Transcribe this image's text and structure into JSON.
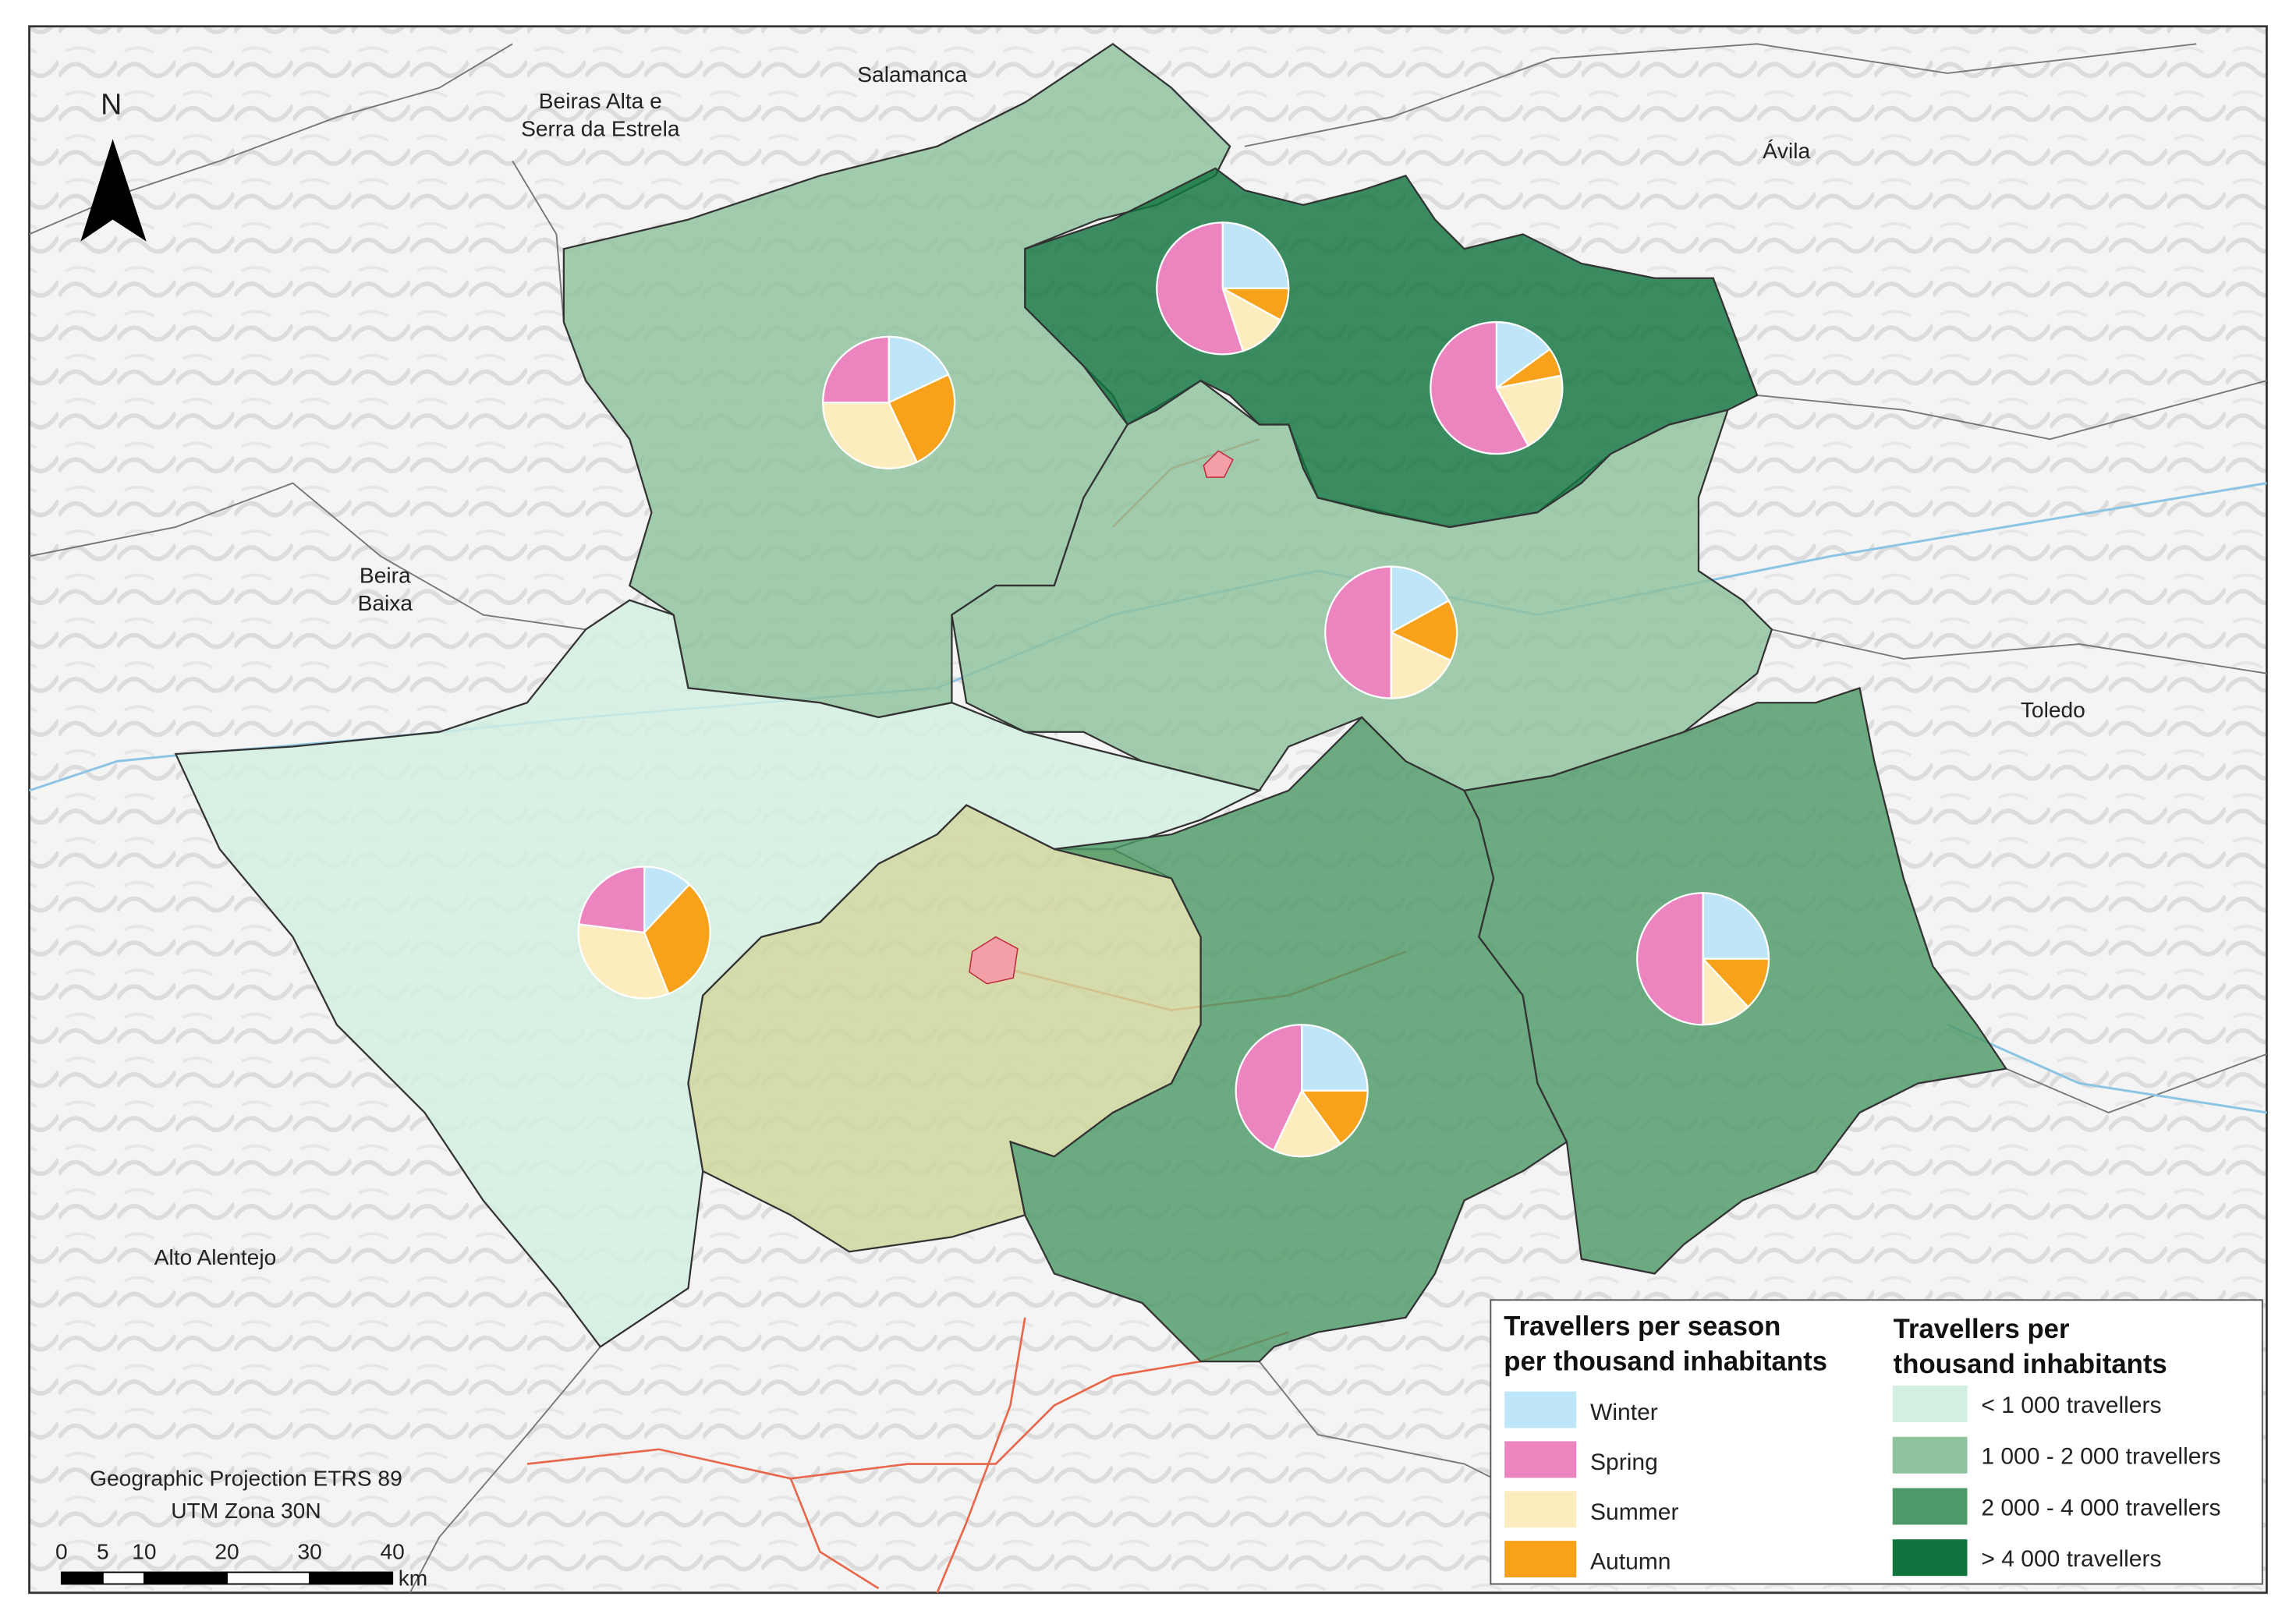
{
  "map": {
    "north": "N",
    "places": [
      [
        "Salamanca"
      ],
      [
        "Beiras Alta e",
        "Serra da Estrela"
      ],
      [
        "Ávila"
      ],
      [
        "Beira",
        "Baixa"
      ],
      [
        "Toledo"
      ],
      [
        "Alto Alentejo"
      ]
    ],
    "projection": [
      "Geographic Projection ETRS 89",
      "UTM Zona 30N"
    ],
    "scale": {
      "ticks": [
        0,
        5,
        10,
        20,
        30,
        40
      ],
      "unit": "km"
    }
  },
  "legend": {
    "season_title": [
      "Travellers per season",
      "per thousand inhabitants"
    ],
    "seasons": [
      {
        "label": "Winter",
        "color": "#bfe6f8"
      },
      {
        "label": "Spring",
        "color": "#ec84c0"
      },
      {
        "label": "Summer",
        "color": "#fdedbe"
      },
      {
        "label": "Autumn",
        "color": "#f8a21b"
      }
    ],
    "class_title": [
      "Travellers per",
      "thousand inhabitants"
    ],
    "classes": [
      {
        "label": "<  1 000 travellers",
        "color": "#d3efe2"
      },
      {
        "label": "1 000 - 2 000 travellers",
        "color": "#8fc29e"
      },
      {
        "label": "2 000 - 4 000 travellers",
        "color": "#4e9a68"
      },
      {
        "label": "> 4 000 travellers",
        "color": "#11743f"
      }
    ]
  },
  "pies": [
    {
      "values": [
        18,
        25,
        32,
        25
      ]
    },
    {
      "values": [
        25,
        55,
        12,
        8
      ]
    },
    {
      "values": [
        15,
        58,
        20,
        7
      ]
    },
    {
      "values": [
        17,
        50,
        18,
        15
      ]
    },
    {
      "values": [
        12,
        23,
        33,
        32
      ]
    },
    {
      "values": [
        25,
        43,
        17,
        15
      ]
    },
    {
      "values": [
        25,
        50,
        12,
        13
      ]
    }
  ]
}
